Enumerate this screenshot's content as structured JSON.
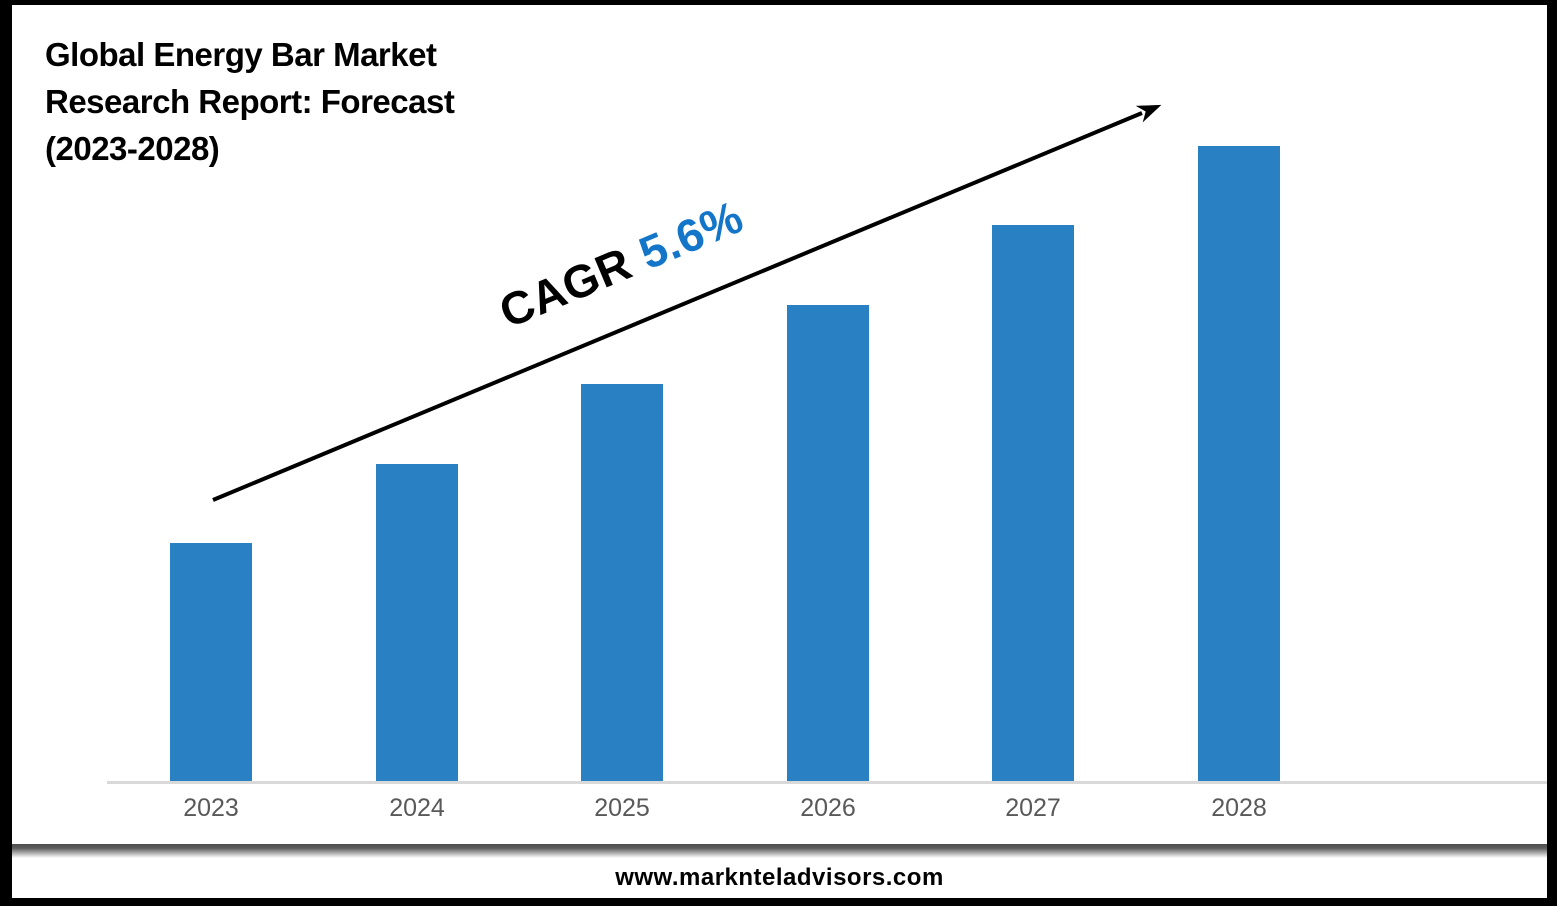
{
  "header": {
    "title_lines": [
      "Global Energy Bar Market",
      "Research Report: Forecast",
      "(2023-2028)"
    ]
  },
  "annotation": {
    "label": "CAGR",
    "value": "5.6%",
    "value_color": "#1376C8"
  },
  "footer": {
    "website": "www.marknteladvisors.com"
  },
  "chart_data": {
    "type": "bar",
    "title": "Global Energy Bar Market Research Report: Forecast (2023-2028)",
    "categories": [
      "2023",
      "2024",
      "2025",
      "2026",
      "2027",
      "2028"
    ],
    "values": [
      3,
      4,
      5,
      6,
      7,
      8
    ],
    "values_note": "no value axis or data labels shown; bar heights are in exact ratio 3:4:5:6:7:8",
    "annotation": "CAGR 5.6% with rising trend arrow",
    "xlabel": "",
    "ylabel": "",
    "ylim": [
      0,
      8.8
    ],
    "grid": false,
    "legend": false,
    "bar_color": "#2980C3",
    "axis_line_color": "#D9D9D9",
    "tick_label_color": "#595959",
    "trend_arrow_color": "#000000"
  }
}
